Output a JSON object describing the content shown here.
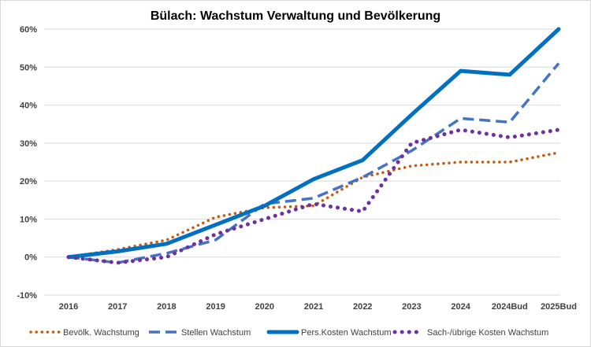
{
  "chart_data": {
    "type": "line",
    "title": "Bülach: Wachstum Verwaltung und Bevölkerung",
    "xlabel": "",
    "ylabel": "",
    "categories": [
      "2016",
      "2017",
      "2018",
      "2019",
      "2020",
      "2021",
      "2022",
      "2023",
      "2024",
      "2024Bud",
      "2025Bud"
    ],
    "ylim": [
      -10,
      60
    ],
    "yticks": [
      -10,
      0,
      10,
      20,
      30,
      40,
      50,
      60
    ],
    "ytick_labels": [
      "-10%",
      "0%",
      "10%",
      "20%",
      "30%",
      "40%",
      "50%",
      "60%"
    ],
    "grid": true,
    "legend_position": "bottom",
    "series": [
      {
        "name": "Bevölk. Wachstumg",
        "style": "dotted",
        "color": "#C55A11",
        "values": [
          0,
          2,
          4.5,
          10.5,
          13,
          13.5,
          21,
          24,
          25,
          25,
          27.5
        ]
      },
      {
        "name": "Stellen Wachstum",
        "style": "dashed",
        "color": "#4472C4",
        "values": [
          0,
          -1.5,
          1,
          4.5,
          14,
          15.5,
          21,
          28,
          36.5,
          35.5,
          51
        ]
      },
      {
        "name": "Pers.Kosten Wachstum",
        "style": "solid",
        "color": "#0070C0",
        "values": [
          0,
          1.5,
          3.5,
          8.5,
          13.5,
          20.5,
          25.5,
          37.5,
          49,
          48,
          60
        ]
      },
      {
        "name": "Sach-/übrige Kosten Wachstum",
        "style": "round-dotted",
        "color": "#7030A0",
        "values": [
          0,
          -1.5,
          0,
          6,
          10,
          14,
          12,
          30,
          33.5,
          31.5,
          33.5
        ]
      }
    ]
  }
}
